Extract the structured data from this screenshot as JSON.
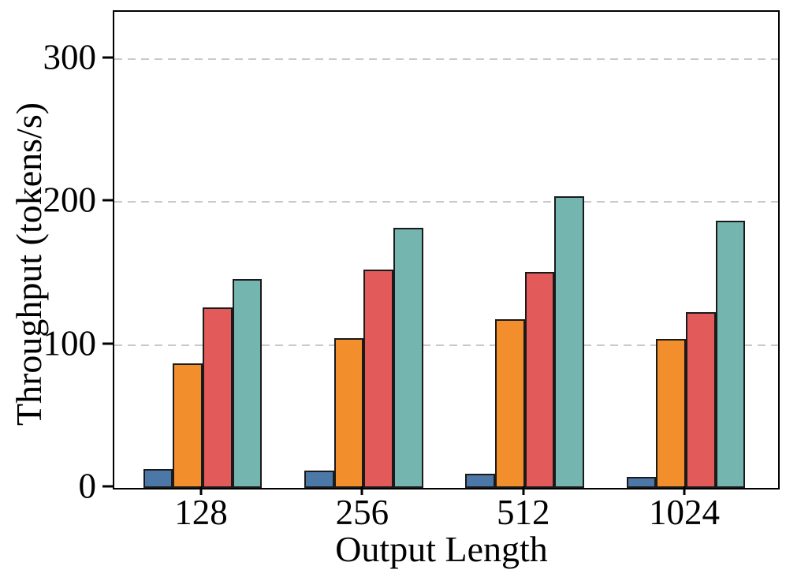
{
  "figure": {
    "background": "#ffffff",
    "text_color": "#000000",
    "gridline_color": "#c9c9c9",
    "bar_edge_color": "#1a1a1a"
  },
  "chart_data": {
    "type": "bar",
    "title": "",
    "xlabel": "Output Length",
    "ylabel": "Throughput (tokens/s)",
    "categories": [
      "128",
      "256",
      "512",
      "1024"
    ],
    "series": [
      {
        "name": "series-blue",
        "color": "#4C78A8",
        "values": [
          13,
          12,
          10,
          8
        ]
      },
      {
        "name": "series-orange",
        "color": "#F28E2B",
        "values": [
          87,
          105,
          118,
          104
        ]
      },
      {
        "name": "series-red",
        "color": "#E25A5A",
        "values": [
          126,
          153,
          151,
          123
        ]
      },
      {
        "name": "series-teal",
        "color": "#75B5AF",
        "values": [
          146,
          182,
          204,
          187
        ]
      }
    ],
    "yticks": [
      0,
      100,
      200,
      300
    ],
    "gridlines": [
      100,
      200,
      300
    ],
    "ylim": [
      0,
      333
    ],
    "grid": true,
    "legend": false
  }
}
